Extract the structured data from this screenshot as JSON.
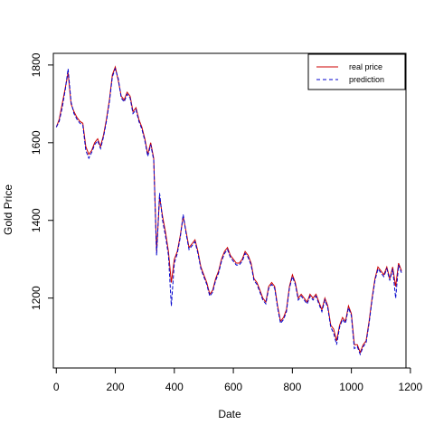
{
  "chart_data": {
    "type": "line",
    "xlabel": "Date",
    "ylabel": "Gold Price",
    "xlim": [
      -10,
      1185
    ],
    "ylim": [
      1020,
      1830
    ],
    "x_ticks": [
      0,
      200,
      400,
      600,
      800,
      1000,
      1200
    ],
    "y_ticks": [
      1200,
      1400,
      1600,
      1800
    ],
    "legend": {
      "position": "top-right",
      "entries": [
        {
          "label": "real price",
          "color": "#cc0000",
          "style": "solid"
        },
        {
          "label": "prediction",
          "color": "#0000cc",
          "style": "dashed"
        }
      ]
    },
    "series": [
      {
        "name": "real price",
        "color": "#cc0000",
        "x": [
          0,
          10,
          20,
          30,
          40,
          50,
          60,
          70,
          80,
          90,
          100,
          110,
          120,
          130,
          140,
          150,
          160,
          170,
          180,
          190,
          200,
          210,
          220,
          230,
          240,
          250,
          260,
          270,
          280,
          290,
          300,
          310,
          320,
          330,
          340,
          350,
          360,
          370,
          380,
          390,
          400,
          410,
          420,
          430,
          440,
          450,
          460,
          470,
          480,
          490,
          500,
          510,
          520,
          530,
          540,
          550,
          560,
          570,
          580,
          590,
          600,
          610,
          620,
          630,
          640,
          650,
          660,
          670,
          680,
          690,
          700,
          710,
          720,
          730,
          740,
          750,
          760,
          770,
          780,
          790,
          800,
          810,
          820,
          830,
          840,
          850,
          860,
          870,
          880,
          890,
          900,
          910,
          920,
          930,
          940,
          950,
          960,
          970,
          980,
          990,
          1000,
          1010,
          1020,
          1030,
          1040,
          1050,
          1060,
          1070,
          1080,
          1090,
          1100,
          1110,
          1120,
          1130,
          1140,
          1150,
          1160,
          1170
        ],
        "values": [
          1640,
          1660,
          1700,
          1740,
          1780,
          1700,
          1680,
          1665,
          1655,
          1650,
          1590,
          1570,
          1580,
          1600,
          1610,
          1590,
          1620,
          1660,
          1710,
          1775,
          1795,
          1760,
          1720,
          1710,
          1730,
          1720,
          1680,
          1690,
          1660,
          1640,
          1610,
          1570,
          1600,
          1560,
          1320,
          1460,
          1410,
          1370,
          1320,
          1240,
          1300,
          1320,
          1360,
          1410,
          1370,
          1330,
          1340,
          1350,
          1320,
          1280,
          1260,
          1240,
          1210,
          1220,
          1250,
          1270,
          1300,
          1320,
          1330,
          1310,
          1300,
          1290,
          1290,
          1300,
          1320,
          1310,
          1290,
          1250,
          1240,
          1220,
          1200,
          1190,
          1230,
          1240,
          1230,
          1180,
          1140,
          1150,
          1170,
          1230,
          1260,
          1240,
          1200,
          1210,
          1200,
          1190,
          1210,
          1200,
          1210,
          1190,
          1170,
          1200,
          1180,
          1130,
          1120,
          1090,
          1130,
          1150,
          1140,
          1180,
          1160,
          1080,
          1080,
          1060,
          1080,
          1090,
          1140,
          1200,
          1250,
          1280,
          1270,
          1260,
          1280,
          1250,
          1280,
          1230,
          1290,
          1270
        ]
      },
      {
        "name": "prediction",
        "color": "#0000cc",
        "x": [
          0,
          10,
          20,
          30,
          40,
          50,
          60,
          70,
          80,
          90,
          100,
          110,
          120,
          130,
          140,
          150,
          160,
          170,
          180,
          190,
          200,
          210,
          220,
          230,
          240,
          250,
          260,
          270,
          280,
          290,
          300,
          310,
          320,
          330,
          340,
          350,
          360,
          370,
          380,
          390,
          400,
          410,
          420,
          430,
          440,
          450,
          460,
          470,
          480,
          490,
          500,
          510,
          520,
          530,
          540,
          550,
          560,
          570,
          580,
          590,
          600,
          610,
          620,
          630,
          640,
          650,
          660,
          670,
          680,
          690,
          700,
          710,
          720,
          730,
          740,
          750,
          760,
          770,
          780,
          790,
          800,
          810,
          820,
          830,
          840,
          850,
          860,
          870,
          880,
          890,
          900,
          910,
          920,
          930,
          940,
          950,
          960,
          970,
          980,
          990,
          1000,
          1010,
          1020,
          1030,
          1040,
          1050,
          1060,
          1070,
          1080,
          1090,
          1100,
          1110,
          1120,
          1130,
          1140,
          1150,
          1160,
          1170
        ],
        "values": [
          1640,
          1655,
          1690,
          1735,
          1790,
          1705,
          1675,
          1660,
          1650,
          1645,
          1580,
          1560,
          1575,
          1595,
          1605,
          1585,
          1615,
          1655,
          1705,
          1770,
          1790,
          1765,
          1715,
          1705,
          1725,
          1715,
          1675,
          1685,
          1655,
          1635,
          1605,
          1565,
          1595,
          1555,
          1310,
          1470,
          1400,
          1360,
          1310,
          1180,
          1290,
          1315,
          1355,
          1415,
          1365,
          1325,
          1335,
          1345,
          1315,
          1275,
          1255,
          1235,
          1205,
          1215,
          1245,
          1265,
          1295,
          1315,
          1325,
          1305,
          1295,
          1285,
          1285,
          1295,
          1315,
          1305,
          1285,
          1245,
          1235,
          1215,
          1195,
          1185,
          1225,
          1235,
          1225,
          1175,
          1135,
          1145,
          1165,
          1225,
          1255,
          1235,
          1195,
          1205,
          1195,
          1185,
          1205,
          1195,
          1205,
          1185,
          1165,
          1195,
          1175,
          1125,
          1110,
          1080,
          1125,
          1145,
          1135,
          1175,
          1155,
          1070,
          1075,
          1055,
          1075,
          1085,
          1135,
          1195,
          1245,
          1275,
          1265,
          1255,
          1275,
          1245,
          1275,
          1200,
          1285,
          1265
        ]
      }
    ]
  }
}
